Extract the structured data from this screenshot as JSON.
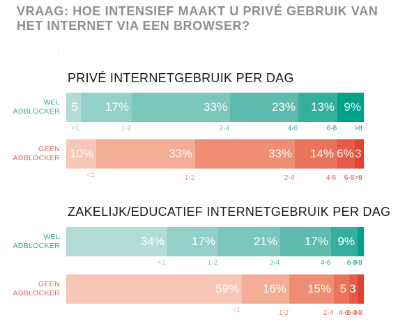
{
  "question": "VRAAG: HOE INTENSIEF MAAKT U PRIVÉ GEBRUIK VAN HET INTERNET VIA EEN BROWSER?",
  "chart_data": [
    {
      "type": "bar",
      "stacked": true,
      "orientation": "horizontal",
      "title": "PRIVÉ INTERNETGEBRUIK PER DAG",
      "categories": [
        "<1",
        "1-2",
        "2-4",
        "4-6",
        "6-8",
        ">8"
      ],
      "groups": [
        {
          "label": [
            "WEL",
            "ADBLOCKER"
          ],
          "values": [
            5,
            17,
            33,
            23,
            13,
            9
          ],
          "value_labels": [
            "5",
            "17%",
            "33%",
            "23%",
            "13%",
            "9%"
          ],
          "colors": [
            "#b2ddd7",
            "#93d0c7",
            "#7cc7bb",
            "#5dbcad",
            "#34af9d",
            "#00a08a"
          ],
          "label_color": "#37a89a"
        },
        {
          "label": [
            "GEEN",
            "ADBLOCKER"
          ],
          "values": [
            10,
            33,
            33,
            14,
            6,
            3
          ],
          "value_labels": [
            "10%",
            "33%",
            "33%",
            "14%",
            "6%",
            "3"
          ],
          "colors": [
            "#f8c6b6",
            "#f4ad95",
            "#ef8e73",
            "#ea735a",
            "#e75a48",
            "#e24234"
          ],
          "label_color": "#e4665a"
        }
      ]
    },
    {
      "type": "bar",
      "stacked": true,
      "orientation": "horizontal",
      "title": "ZAKELIJK/EDUCATIEF INTERNETGEBRUIK PER DAG",
      "categories": [
        "<1",
        "1-2",
        "2-4",
        "4-6",
        "6-8",
        ">8"
      ],
      "groups": [
        {
          "label": [
            "WEL",
            "ADBLOCKER"
          ],
          "values": [
            34,
            17,
            21,
            17,
            9,
            2
          ],
          "value_labels": [
            "34%",
            "17%",
            "21%",
            "17%",
            "9%",
            ""
          ],
          "colors": [
            "#b2ddd7",
            "#93d0c7",
            "#7cc7bb",
            "#5dbcad",
            "#34af9d",
            "#00a08a"
          ],
          "label_color": "#37a89a"
        },
        {
          "label": [
            "GEEN",
            "ADBLOCKER"
          ],
          "values": [
            59,
            16,
            15,
            5,
            3,
            2
          ],
          "value_labels": [
            "59%",
            "16%",
            "15%",
            "5",
            "3",
            ""
          ],
          "colors": [
            "#f8c6b6",
            "#f4ad95",
            "#ef8e73",
            "#ea735a",
            "#e75a48",
            "#e24234"
          ],
          "label_color": "#e4665a"
        }
      ]
    }
  ]
}
